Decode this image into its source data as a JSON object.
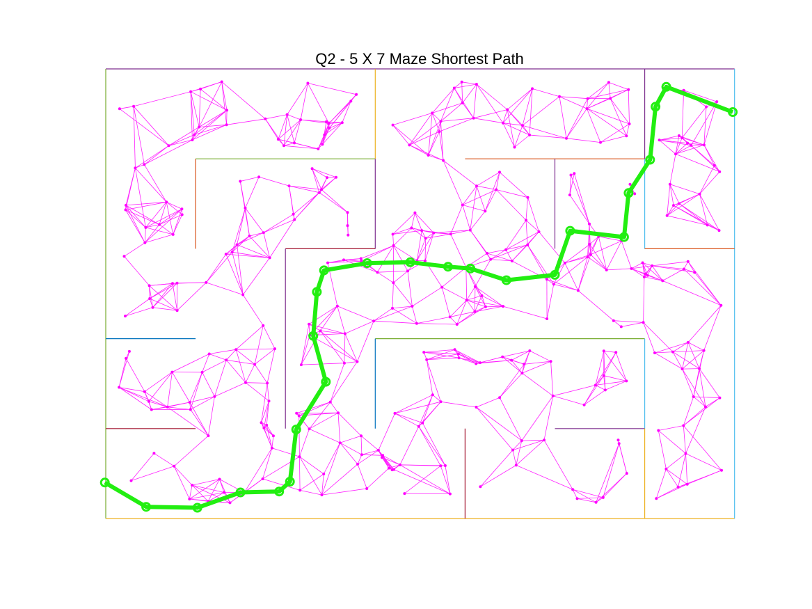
{
  "figure": {
    "title": "Q2 - 5 X 7 Maze Shortest Path"
  },
  "colors": {
    "graph_edges": "#ff1fff",
    "graph_nodes": "#ff00ff",
    "path": "#22ee11",
    "wall_palette": [
      "#7e2f8e",
      "#77ac30",
      "#edb120",
      "#4dbeee",
      "#d95319",
      "#0072bd",
      "#a2142f"
    ]
  },
  "maze": {
    "rows": 5,
    "cols": 7,
    "walls": [
      [
        0,
        0,
        7,
        0,
        0
      ],
      [
        0,
        0,
        0,
        5,
        1
      ],
      [
        0,
        5,
        7,
        5,
        2
      ],
      [
        7,
        0,
        7,
        5,
        3
      ],
      [
        3,
        0,
        3,
        1,
        2
      ],
      [
        6,
        0,
        6,
        1,
        0
      ],
      [
        1,
        1,
        3,
        1,
        1
      ],
      [
        4,
        1,
        6,
        1,
        4
      ],
      [
        1,
        1,
        1,
        2,
        4
      ],
      [
        3,
        1,
        3,
        2,
        0
      ],
      [
        5,
        1,
        5,
        2,
        0
      ],
      [
        6,
        1,
        6,
        2,
        3
      ],
      [
        2,
        2,
        3,
        2,
        6
      ],
      [
        6,
        2,
        7,
        2,
        4
      ],
      [
        2,
        2,
        2,
        4,
        0
      ],
      [
        0,
        3,
        1,
        3,
        5
      ],
      [
        3,
        3,
        6,
        3,
        1
      ],
      [
        3,
        3,
        3,
        4,
        5
      ],
      [
        6,
        3,
        6,
        4,
        3
      ],
      [
        0,
        4,
        1,
        4,
        6
      ],
      [
        5,
        4,
        6,
        4,
        0
      ],
      [
        4,
        4,
        4,
        5,
        6
      ],
      [
        6,
        4,
        6,
        5,
        2
      ]
    ]
  },
  "graph": {
    "node_count": 320,
    "edges_per_node": 6
  },
  "shortest_path": {
    "waypoints": [
      [
        -0.01,
        4.6
      ],
      [
        0.45,
        4.87
      ],
      [
        1.02,
        4.88
      ],
      [
        1.5,
        4.71
      ],
      [
        1.93,
        4.7
      ],
      [
        2.05,
        4.59
      ],
      [
        2.12,
        4.01
      ],
      [
        2.45,
        3.48
      ],
      [
        2.31,
        2.97
      ],
      [
        2.35,
        2.48
      ],
      [
        2.43,
        2.24
      ],
      [
        2.91,
        2.16
      ],
      [
        3.39,
        2.15
      ],
      [
        3.81,
        2.2
      ],
      [
        4.06,
        2.22
      ],
      [
        4.46,
        2.35
      ],
      [
        5.0,
        2.29
      ],
      [
        5.17,
        1.8
      ],
      [
        5.77,
        1.87
      ],
      [
        5.82,
        1.38
      ],
      [
        6.06,
        1.01
      ],
      [
        6.12,
        0.42
      ],
      [
        6.24,
        0.2
      ],
      [
        6.98,
        0.48
      ]
    ]
  }
}
